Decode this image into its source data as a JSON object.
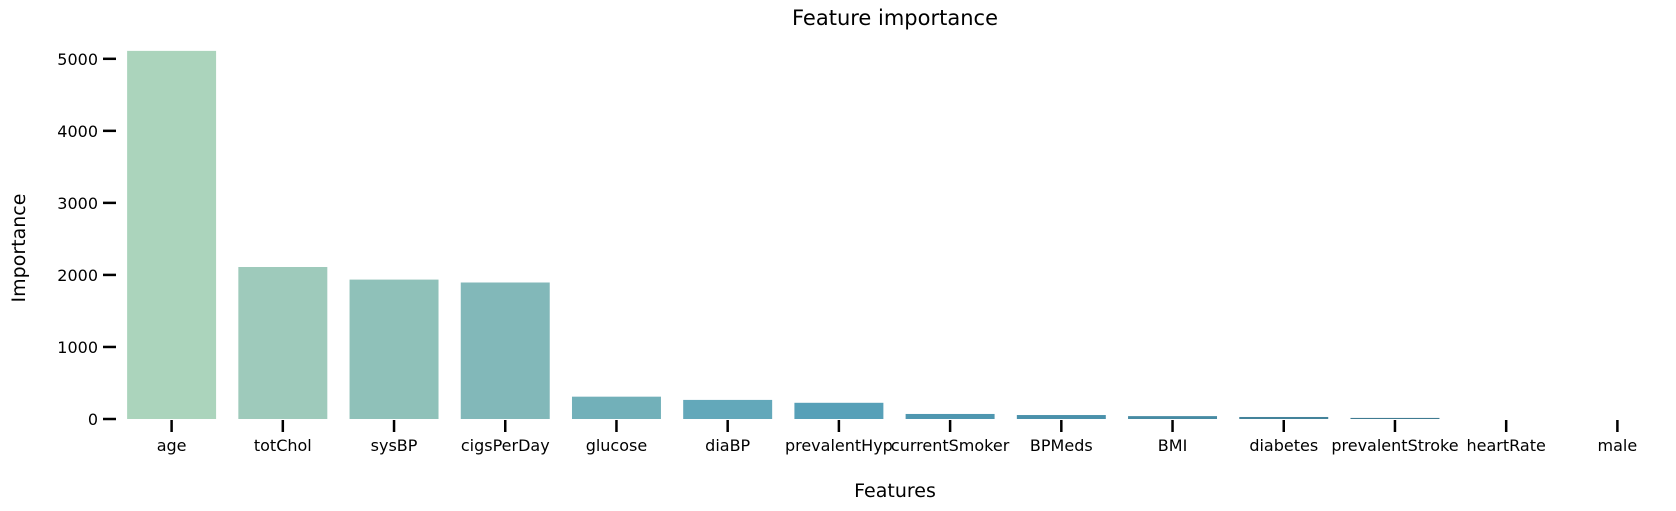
{
  "chart_data": {
    "type": "bar",
    "title": "Feature importance",
    "xlabel": "Features",
    "ylabel": "Importance",
    "categories": [
      "age",
      "totChol",
      "sysBP",
      "cigsPerDay",
      "glucose",
      "diaBP",
      "prevalentHyp",
      "currentSmoker",
      "BPMeds",
      "BMI",
      "diabetes",
      "prevalentStroke",
      "heartRate",
      "male"
    ],
    "values": [
      5110,
      2110,
      1935,
      1895,
      310,
      265,
      225,
      70,
      55,
      40,
      28,
      15,
      0,
      0
    ],
    "colors": [
      "#abd4bc",
      "#9ecabb",
      "#8fc1b9",
      "#82b8b9",
      "#72b0b9",
      "#63a8ba",
      "#57a0b8",
      "#4f97b0",
      "#4a91ab",
      "#478ba3",
      "#43839a",
      "#3f7b91",
      "#3b7388",
      "#376b80"
    ],
    "yticks": [
      0,
      1000,
      2000,
      3000,
      4000,
      5000
    ],
    "ylim": [
      0,
      5150
    ],
    "grid": false,
    "legend": "none"
  }
}
